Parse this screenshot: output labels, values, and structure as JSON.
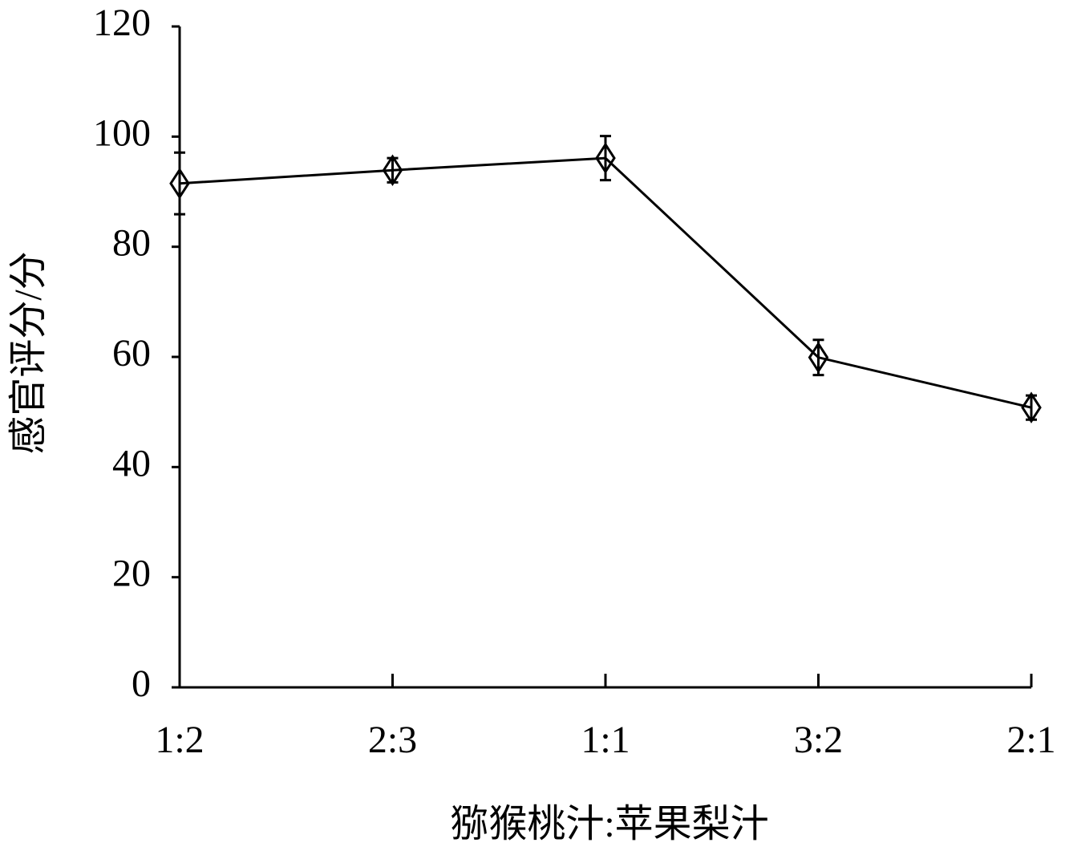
{
  "chart_data": {
    "type": "line",
    "x_label": "猕猴桃汁:苹果梨汁",
    "y_label": "感官评分/分",
    "categories": [
      "1:2",
      "2:3",
      "1:1",
      "3:2",
      "2:1"
    ],
    "series": [
      {
        "color": "#000000",
        "values": [
          91.5,
          93.9,
          96.1,
          59.9,
          50.8
        ],
        "errors": [
          5.6,
          2.2,
          4.0,
          3.2,
          2.2
        ]
      }
    ],
    "ylim": [
      0,
      120
    ],
    "yticks": [
      0,
      20,
      40,
      60,
      80,
      100,
      120
    ],
    "grid": false
  }
}
